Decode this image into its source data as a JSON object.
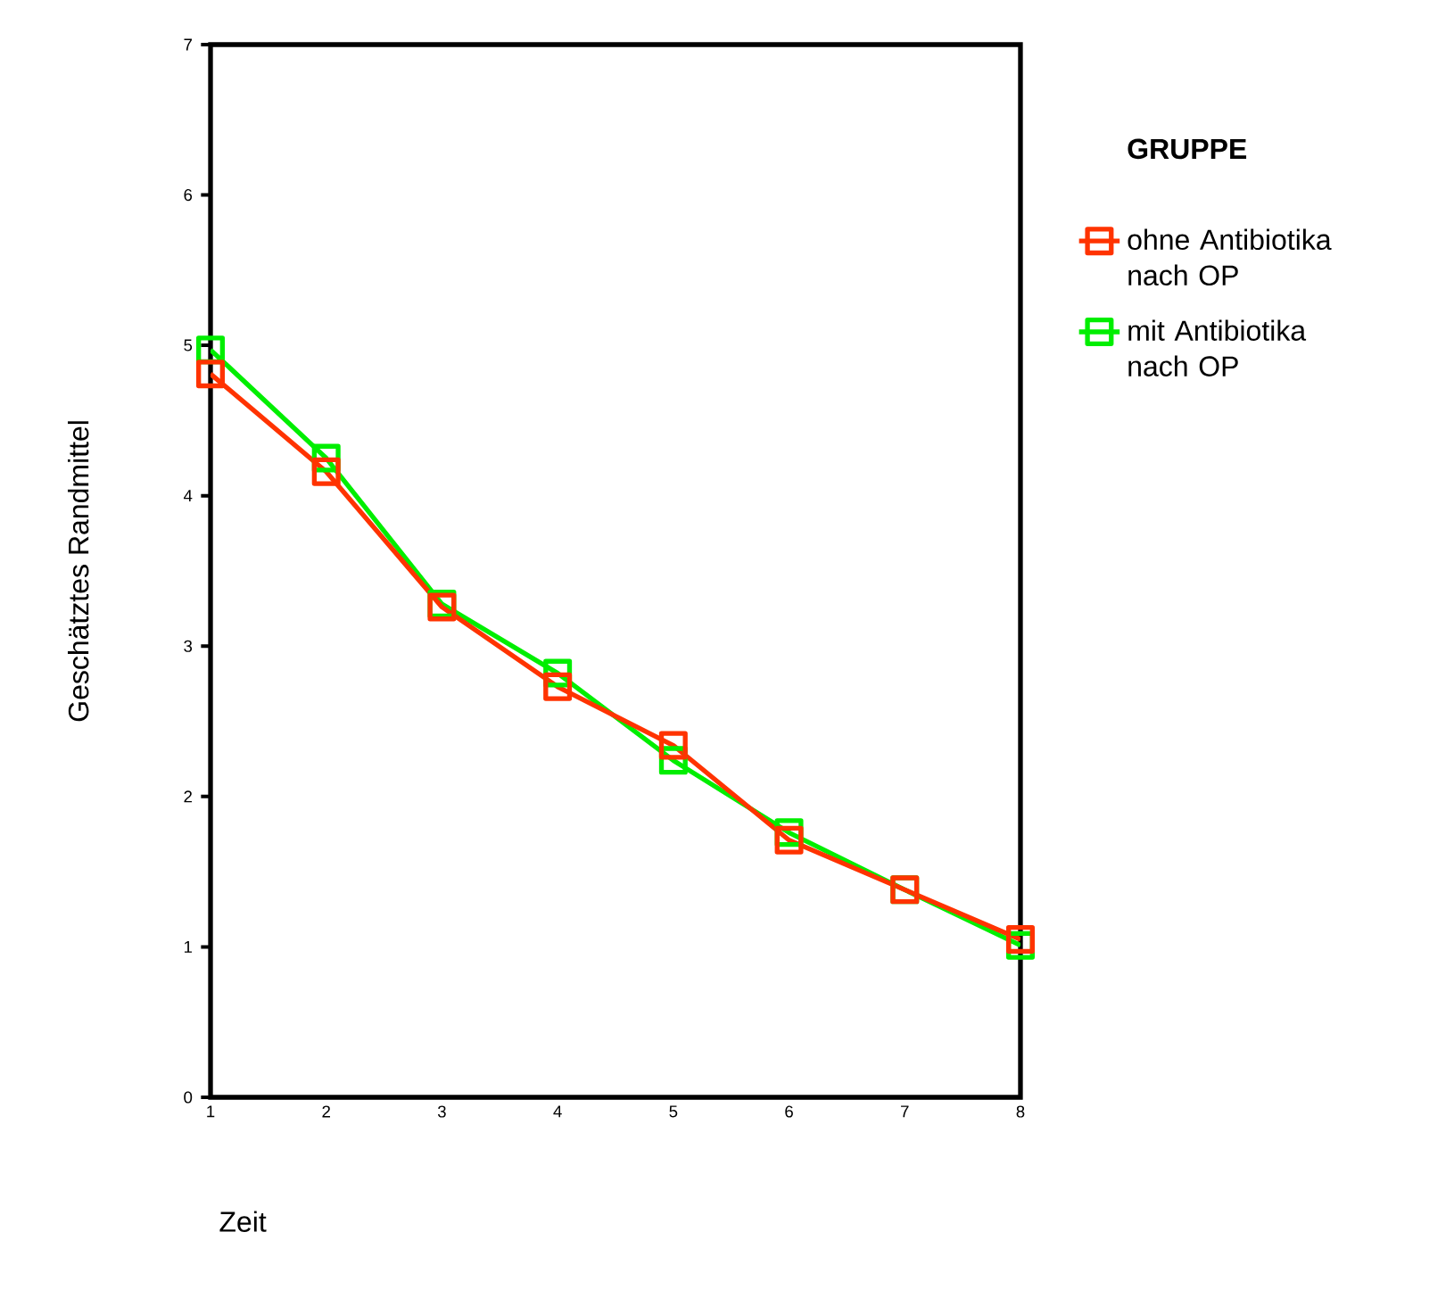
{
  "chart_data": {
    "type": "line",
    "xlabel": "Zeit",
    "ylabel": "Geschätztes Randmittel",
    "legend_title": "GRUPPE",
    "x": [
      1,
      2,
      3,
      4,
      5,
      6,
      7,
      8
    ],
    "series": [
      {
        "name": "ohne Antibiotika nach OP",
        "color": "#ff3300",
        "values": [
          4.81,
          4.16,
          3.26,
          2.73,
          2.34,
          1.71,
          1.38,
          1.05
        ]
      },
      {
        "name": "mit Antibiotika nach OP",
        "color": "#00ee00",
        "values": [
          4.97,
          4.25,
          3.28,
          2.82,
          2.24,
          1.76,
          1.38,
          1.01
        ]
      }
    ],
    "xlim": [
      1,
      8
    ],
    "xticks": [
      1,
      2,
      3,
      4,
      5,
      6,
      7,
      8
    ],
    "ylim": [
      0,
      7
    ],
    "yticks": [
      0,
      1,
      2,
      3,
      4,
      5,
      6,
      7
    ],
    "grid": false,
    "legend": "right",
    "marker": "square",
    "line_style": "solid"
  }
}
